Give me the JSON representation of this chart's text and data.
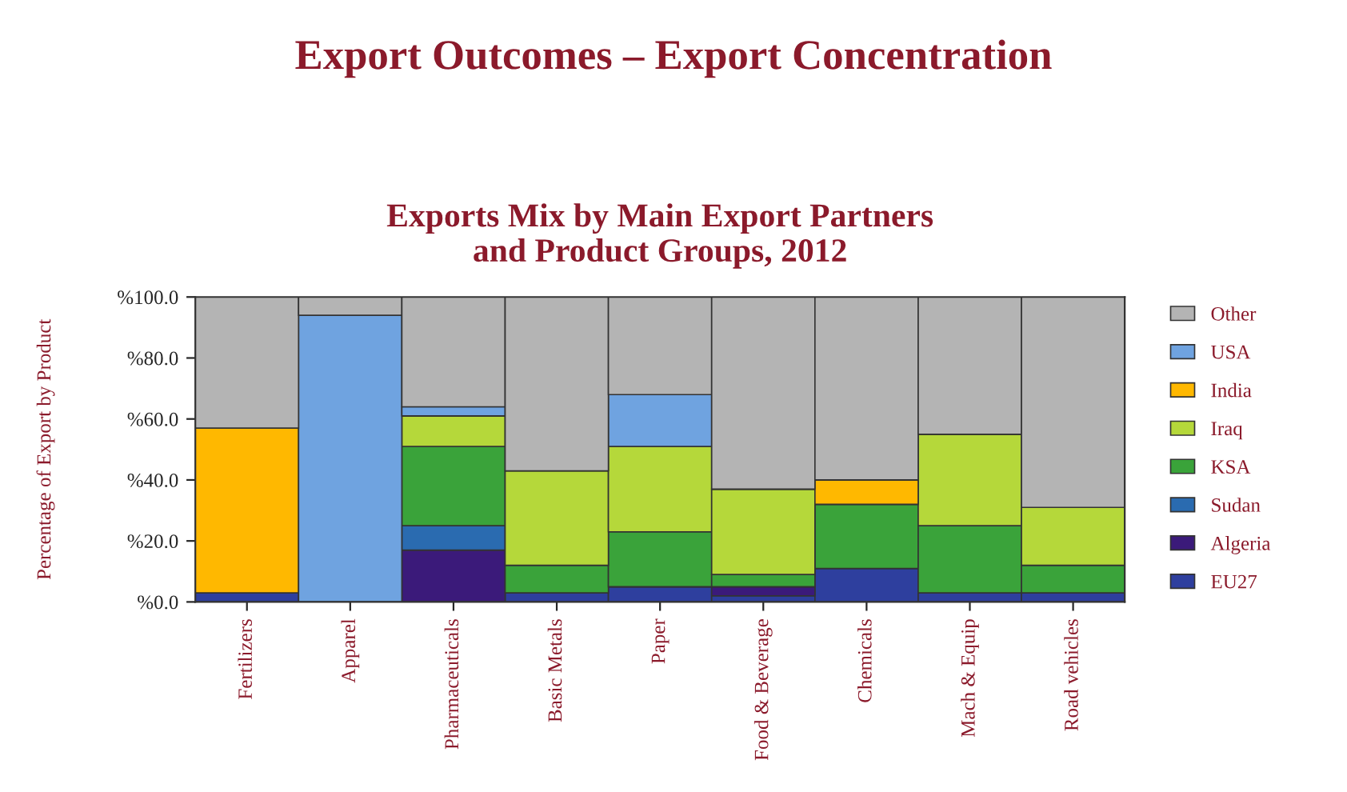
{
  "chart_data": {
    "type": "bar",
    "stacked": true,
    "title": "Export Outcomes – Export Concentration",
    "subtitle": "Exports Mix by Main Export Partners\nand Product Groups, 2012",
    "ylabel": "Percentage of Export by Product",
    "categories": [
      "Fertilizers",
      "Apparel",
      "Pharmaceuticals",
      "Basic Metals",
      "Paper",
      "Food & Beverage",
      "Chemicals",
      "Mach & Equip",
      "Road vehicles"
    ],
    "series": [
      {
        "name": "EU27",
        "color": "#2e3f9e",
        "values": [
          3,
          0,
          0,
          3,
          5,
          2,
          11,
          3,
          3
        ]
      },
      {
        "name": "Algeria",
        "color": "#3b1a7a",
        "values": [
          0,
          0,
          17,
          0,
          0,
          3,
          0,
          0,
          0
        ]
      },
      {
        "name": "Sudan",
        "color": "#2a6bb0",
        "values": [
          0,
          0,
          8,
          0,
          0,
          0,
          0,
          0,
          0
        ]
      },
      {
        "name": "KSA",
        "color": "#3aa33a",
        "values": [
          0,
          0,
          26,
          9,
          18,
          4,
          21,
          22,
          9
        ]
      },
      {
        "name": "Iraq",
        "color": "#b5d83a",
        "values": [
          0,
          0,
          10,
          31,
          28,
          28,
          0,
          30,
          19
        ]
      },
      {
        "name": "India",
        "color": "#ffb800",
        "values": [
          54,
          0,
          0,
          0,
          0,
          0,
          8,
          0,
          0
        ]
      },
      {
        "name": "USA",
        "color": "#6fa3e0",
        "values": [
          0,
          94,
          3,
          0,
          17,
          0,
          0,
          0,
          0
        ]
      },
      {
        "name": "Other",
        "color": "#b4b4b4",
        "values": [
          43,
          6,
          36,
          57,
          32,
          63,
          60,
          45,
          69
        ]
      }
    ],
    "ylim": [
      0,
      100
    ],
    "yticks": [
      {
        "value": 0,
        "label": "%0.0"
      },
      {
        "value": 20,
        "label": "%20.0"
      },
      {
        "value": 40,
        "label": "%40.0"
      },
      {
        "value": 60,
        "label": "%60.0"
      },
      {
        "value": 80,
        "label": "%80.0"
      },
      {
        "value": 100,
        "label": "%100.0"
      }
    ],
    "legend": "right"
  }
}
